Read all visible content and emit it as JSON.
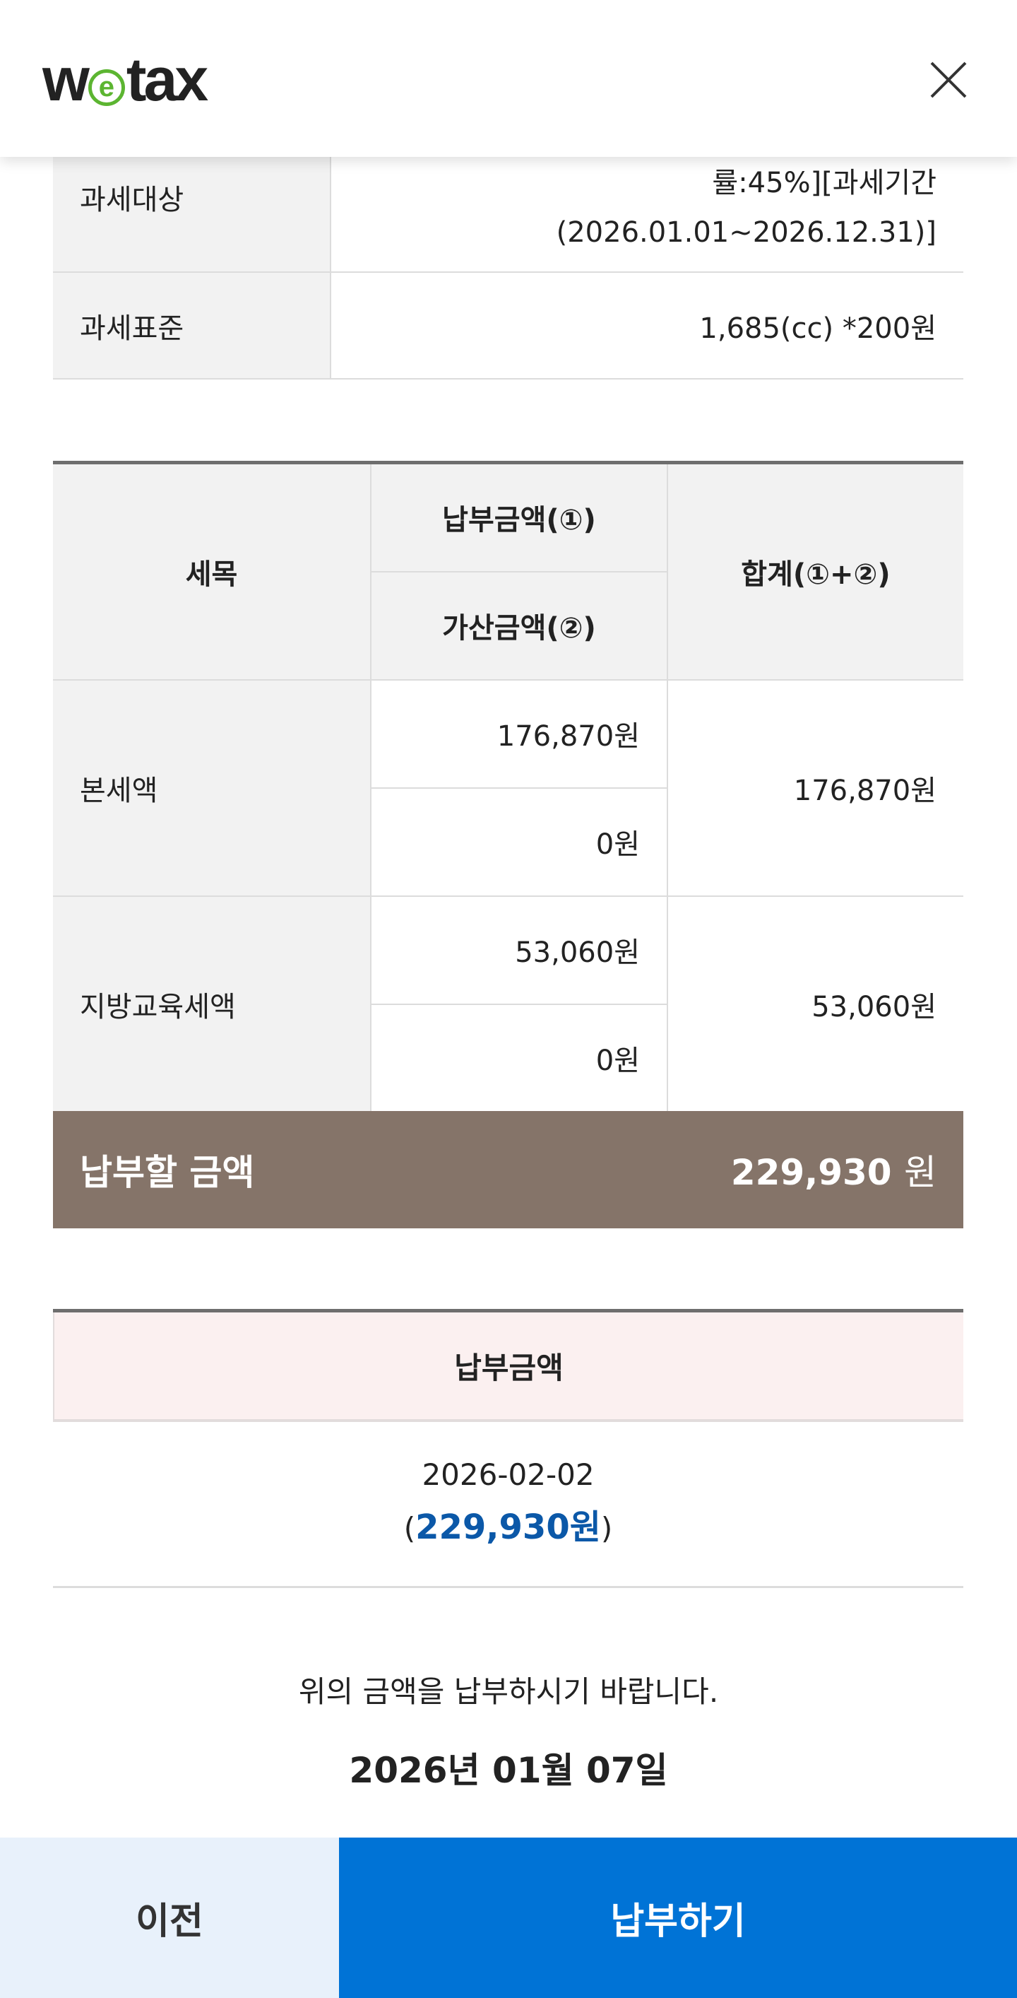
{
  "header": {
    "logo": "wetax",
    "logo_parts": [
      "w",
      "e",
      "tax"
    ],
    "close_icon": "close-icon",
    "logo_accent": "#5cb531"
  },
  "info_table": [
    {
      "label": "과세대상",
      "value": "률:45%][과세기간(2026.01.01~2026.12.31)]"
    },
    {
      "label": "과세표준",
      "value": "1,685(cc) *200원"
    }
  ],
  "tax_table": {
    "headers": {
      "item": "세목",
      "amount": "납부금액(①)",
      "penalty": "가산금액(②)",
      "sum": "합계(①+②)"
    },
    "rows": [
      {
        "item": "본세액",
        "amount": "176,870원",
        "penalty": "0원",
        "sum": "176,870원"
      },
      {
        "item": "지방교육세액",
        "amount": "53,060원",
        "penalty": "0원",
        "sum": "53,060원"
      }
    ]
  },
  "total": {
    "label": "납부할 금액",
    "amount": "229,930",
    "unit": "원",
    "color": "#857469"
  },
  "payment": {
    "header": "납부금액",
    "date": "2026-02-02",
    "open": "(",
    "amount": "229,930원",
    "close": ")"
  },
  "notice": {
    "text": "위의 금액을 납부하시기 바랍니다.",
    "date": "2026년 01월 07일"
  },
  "buttons": {
    "prev": "이전",
    "pay": "납부하기",
    "pay_color": "#0073d6"
  }
}
